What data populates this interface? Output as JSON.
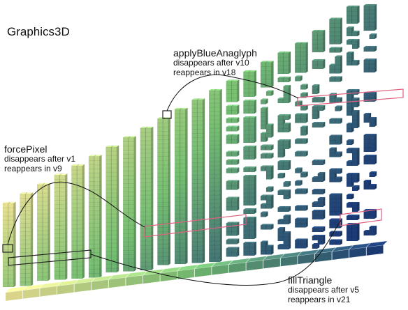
{
  "title": "Graphics3D",
  "annotations": [
    {
      "id": "applyBlueAnaglyph",
      "name": "applyBlueAnaglyph",
      "line1": "disappears after v10",
      "line2": "reappears in v18"
    },
    {
      "id": "forcePixel",
      "name": "forcePixel",
      "line1": "disappears after v1",
      "line2": "reappears in v9"
    },
    {
      "id": "fillTriangle",
      "name": "fillTriangle",
      "line1": "disappears after v5",
      "line2": "reappears in v21"
    }
  ],
  "colors": {
    "early_version": "#f2ec9a",
    "mid_version": "#7cc978",
    "late_version": "#1d3f7e",
    "highlight_box": "#e06080",
    "callout_box": "#222222"
  }
}
